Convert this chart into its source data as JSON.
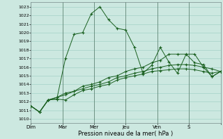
{
  "title": "Pression niveau de la mer( hPa )",
  "ylabel_ticks": [
    1010,
    1011,
    1012,
    1013,
    1014,
    1015,
    1016,
    1017,
    1018,
    1019,
    1020,
    1021,
    1022,
    1023
  ],
  "ylim": [
    1009.5,
    1023.5
  ],
  "day_labels": [
    "Dim",
    "Mar",
    "Mer",
    "Jeu",
    "Ven",
    "S"
  ],
  "background_color": "#cce8e0",
  "grid_color": "#99ccc0",
  "line_color": "#1a6020",
  "lines": [
    [
      1011.5,
      1010.8,
      1012.2,
      1012.3,
      1017.0,
      1019.8,
      1020.0,
      1022.2,
      1023.0,
      1021.5,
      1020.5,
      1020.3,
      1018.3,
      1015.3,
      1016.2,
      1018.3,
      1016.6,
      1015.3,
      1017.5,
      1017.5,
      1016.0,
      1014.9,
      1015.5
    ],
    [
      1011.5,
      1010.8,
      1012.2,
      1012.3,
      1012.2,
      1012.8,
      1013.3,
      1013.5,
      1013.8,
      1014.0,
      1014.5,
      1014.8,
      1015.0,
      1015.2,
      1015.5,
      1015.6,
      1015.7,
      1015.8,
      1015.8,
      1015.7,
      1015.5,
      1015.3,
      1015.5
    ],
    [
      1011.5,
      1010.8,
      1012.2,
      1012.5,
      1012.8,
      1013.2,
      1013.5,
      1013.8,
      1014.0,
      1014.3,
      1014.8,
      1015.0,
      1015.3,
      1015.5,
      1015.8,
      1016.0,
      1016.2,
      1016.3,
      1016.3,
      1016.2,
      1016.0,
      1015.8,
      1015.5
    ],
    [
      1011.5,
      1010.8,
      1012.2,
      1012.5,
      1013.0,
      1013.2,
      1013.8,
      1014.0,
      1014.3,
      1014.8,
      1015.0,
      1015.5,
      1015.8,
      1016.0,
      1016.5,
      1016.8,
      1017.5,
      1017.5,
      1017.5,
      1016.5,
      1016.3,
      1014.9,
      1015.5
    ]
  ],
  "n_points": 23,
  "day_x_positions": [
    3,
    7,
    11,
    15,
    19,
    23
  ],
  "n_days": 6
}
